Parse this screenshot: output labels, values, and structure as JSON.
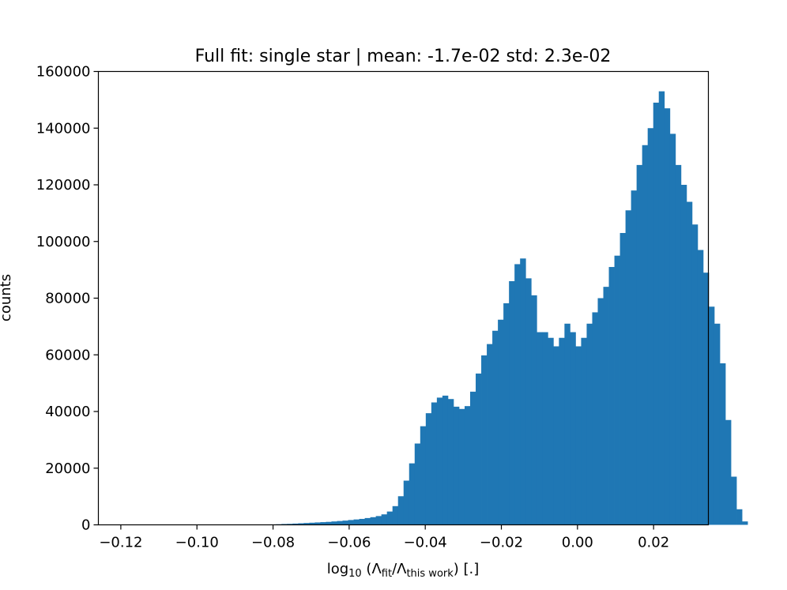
{
  "chart_data": {
    "type": "bar",
    "title": "Full fit: single star | mean: -1.7e-02 std: 2.3e-02",
    "xlabel": {
      "prefix": "log",
      "prefix_sub": "10",
      "open": " (Λ",
      "num_sub": "fit",
      "mid": "/Λ",
      "den_sub": "this work",
      "suffix": ") [.]"
    },
    "ylabel": "counts",
    "xlim": [
      -0.1259,
      0.0344
    ],
    "ylim": [
      0,
      160000
    ],
    "x_ticks": [
      {
        "value": -0.12,
        "label": "−0.12"
      },
      {
        "value": -0.1,
        "label": "−0.10"
      },
      {
        "value": -0.08,
        "label": "−0.08"
      },
      {
        "value": -0.06,
        "label": "−0.06"
      },
      {
        "value": -0.04,
        "label": "−0.04"
      },
      {
        "value": -0.02,
        "label": "−0.02"
      },
      {
        "value": 0.0,
        "label": "0.00"
      },
      {
        "value": 0.02,
        "label": "0.02"
      }
    ],
    "y_ticks": [
      {
        "value": 0,
        "label": "0"
      },
      {
        "value": 20000,
        "label": "20000"
      },
      {
        "value": 40000,
        "label": "40000"
      },
      {
        "value": 60000,
        "label": "60000"
      },
      {
        "value": 80000,
        "label": "80000"
      },
      {
        "value": 100000,
        "label": "100000"
      },
      {
        "value": 120000,
        "label": "120000"
      },
      {
        "value": 140000,
        "label": "140000"
      },
      {
        "value": 160000,
        "label": "160000"
      }
    ],
    "bar_color": "#1f77b4",
    "bin_start": -0.1186,
    "bin_width": 0.001458,
    "values": [
      0,
      0,
      0,
      0,
      0,
      0,
      0,
      0,
      0,
      0,
      0,
      0,
      0,
      0,
      0,
      0,
      0,
      0,
      0,
      0,
      0,
      0,
      0,
      0,
      50,
      100,
      150,
      200,
      300,
      350,
      450,
      550,
      650,
      750,
      850,
      950,
      1050,
      1200,
      1350,
      1500,
      1700,
      1900,
      2100,
      2400,
      2700,
      3100,
      3700,
      4700,
      6600,
      10100,
      15600,
      21700,
      28700,
      34800,
      39400,
      43200,
      44900,
      45600,
      44400,
      41700,
      40900,
      41900,
      47000,
      53400,
      59800,
      63800,
      68500,
      72400,
      78200,
      86000,
      92000,
      94000,
      87000,
      81000,
      68000,
      68000,
      66000,
      63000,
      66000,
      71000,
      68000,
      63000,
      66000,
      71000,
      75000,
      80000,
      84000,
      91000,
      95000,
      103000,
      111000,
      118000,
      127000,
      134000,
      140000,
      149000,
      153000,
      147000,
      138000,
      127000,
      120000,
      114000,
      106000,
      97000,
      89000,
      77000,
      71000,
      57000,
      37000,
      17000,
      5500,
      1200
    ]
  }
}
